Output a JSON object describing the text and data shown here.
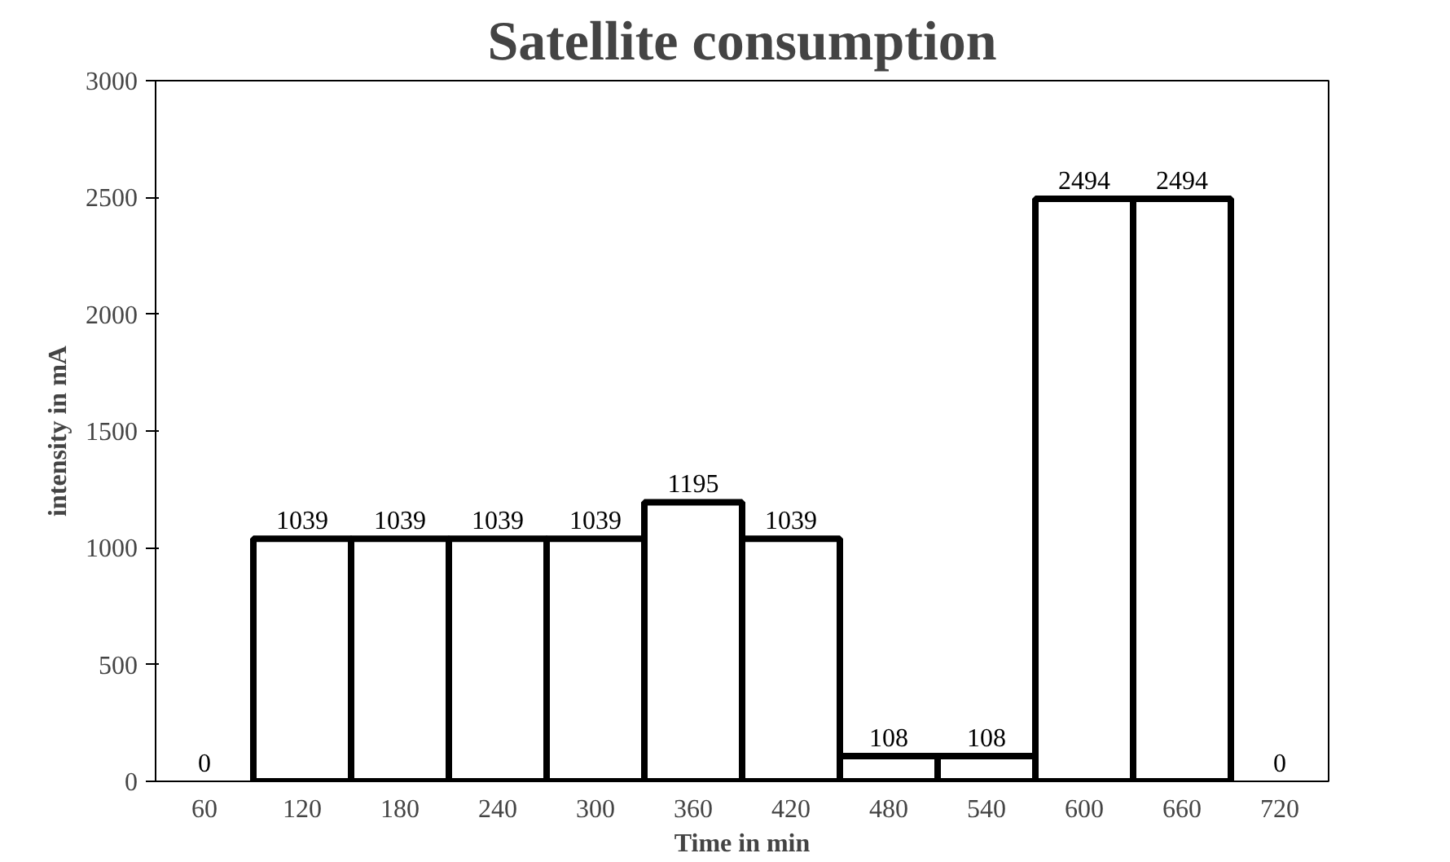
{
  "chart_data": {
    "type": "bar",
    "title": "Satellite consumption",
    "xlabel": "Time in min",
    "ylabel": "intensity in mA",
    "categories": [
      "60",
      "120",
      "180",
      "240",
      "300",
      "360",
      "420",
      "480",
      "540",
      "600",
      "660",
      "720"
    ],
    "values": [
      0,
      1039,
      1039,
      1039,
      1039,
      1195,
      1039,
      108,
      108,
      2494,
      2494,
      0
    ],
    "color": "#ffffff",
    "ylim": [
      0,
      3000
    ],
    "yticks": [
      0,
      500,
      1000,
      1500,
      2000,
      2500,
      3000
    ],
    "grid": false,
    "data_labels": true
  }
}
